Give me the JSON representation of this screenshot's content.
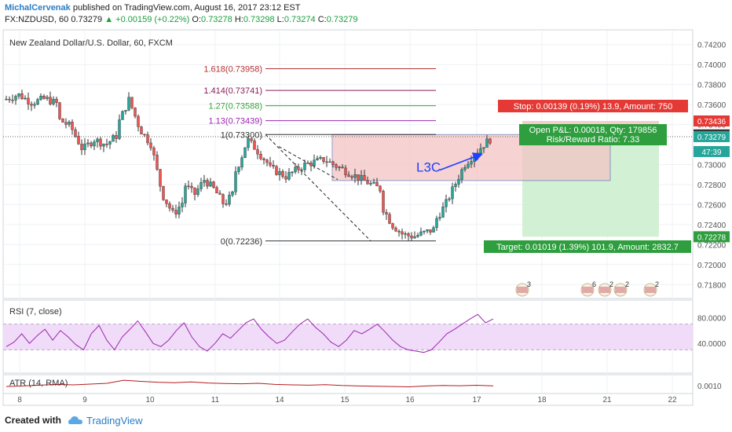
{
  "header": {
    "author": "MichalCervenak",
    "published_text": "published on TradingView.com, August 16, 2017 23:12 EST",
    "symbol_line": {
      "symbol": "FX:NZDUSD, 60",
      "price": "0.73279",
      "change": "+0.00159 (+0.22%)",
      "O_label": "O:",
      "O": "0.73278",
      "H_label": "H:",
      "H": "0.73298",
      "L_label": "L:",
      "L": "0.73274",
      "C_label": "C:",
      "C": "0.73279"
    }
  },
  "footer": {
    "created_with": "Created with",
    "brand": "TradingView"
  },
  "colors": {
    "up": "#26a69a",
    "down": "#ef5350",
    "candle_outline": "#333333",
    "stop_zone": "#f4c7c7",
    "target_zone": "#cdeecf",
    "fib": "#b33333",
    "rsi_line": "#9c27b0",
    "rsi_band": "#f0dcf8",
    "atr_line": "#b71c1c",
    "arrow": "#1e40ff"
  },
  "chart_data": [
    {
      "type": "candlestick",
      "title": "New Zealand Dollar/U.S. Dollar, 60, FXCM",
      "ylim": [
        0.717,
        0.743
      ],
      "y_ticks": [
        0.718,
        0.72,
        0.722,
        0.724,
        0.726,
        0.728,
        0.73,
        0.734,
        0.736,
        0.738,
        0.74,
        0.742
      ],
      "y_tick_labels": [
        "0.71800",
        "0.72000",
        "0.72200",
        "0.72400",
        "0.72600",
        "0.72800",
        "0.73000",
        "0.73400",
        "0.73600",
        "0.73800",
        "0.74000",
        "0.74200"
      ],
      "x_ticks": [
        "8",
        "9",
        "10",
        "11",
        "14",
        "15",
        "16",
        "17",
        "18",
        "21",
        "22"
      ],
      "grid": true,
      "series_close_path": [
        [
          0.7365,
          0.737,
          0.7362,
          0.7366,
          0.736
        ],
        [
          0.7345,
          0.7338,
          0.7315,
          0.7325,
          0.732,
          0.733
        ],
        [
          0.734,
          0.7365,
          0.7335,
          0.732,
          0.727,
          0.725,
          0.7265
        ],
        [
          0.728,
          0.727,
          0.7285,
          0.7275,
          0.726,
          0.7272
        ],
        [
          0.729,
          0.7305,
          0.7325,
          0.7318,
          0.731,
          0.7302
        ],
        [
          0.7298,
          0.7288,
          0.73,
          0.7305,
          0.7295,
          0.7285,
          0.7275
        ],
        [
          0.726,
          0.724,
          0.723,
          0.7228,
          0.7232,
          0.7236
        ],
        [
          0.7245,
          0.726,
          0.728,
          0.73,
          0.731,
          0.732,
          0.73279
        ]
      ],
      "fib_levels": [
        {
          "label": "1.618(0.73958)",
          "value": 0.73958,
          "color": "#b33333"
        },
        {
          "label": "1.414(0.73741)",
          "value": 0.73741,
          "color": "#8e1a5a"
        },
        {
          "label": "1.27(0.73588)",
          "value": 0.73588,
          "color": "#3aa63a"
        },
        {
          "label": "1.13(0.73439)",
          "value": 0.73439,
          "color": "#9c27b0"
        },
        {
          "label": "1(0.73300)",
          "value": 0.733,
          "color": "#333333"
        },
        {
          "label": "0(0.72236)",
          "value": 0.72236,
          "color": "#333333"
        }
      ],
      "annotations": {
        "stop": "Stop: 0.00139 (0.19%) 13.9, Amount: 750",
        "open_pl": "Open P&L: 0.00018, Qty: 179856",
        "risk_reward": "Risk/Reward Ratio: 7.33",
        "target": "Target: 0.01019 (1.39%) 101.9, Amount: 2832.7",
        "pattern_label": "L3C"
      },
      "price_tags": [
        {
          "label": "0.73436",
          "value": 0.73436,
          "color": "#e53935"
        },
        {
          "label": "0.73297",
          "value": 0.73297,
          "color": "#333333"
        },
        {
          "label": "0.73279",
          "value": 0.73279,
          "color": "#26a69a"
        },
        {
          "label": "47:39",
          "value": 0.7313,
          "color": "#26a69a"
        },
        {
          "label": "0.72278",
          "value": 0.72278,
          "color": "#2e9e3e"
        }
      ],
      "event_badges": [
        {
          "label": "3",
          "x_day": 15.5
        },
        {
          "label": "6",
          "x_day": 17.6
        },
        {
          "label": "2",
          "x_day": 17.9
        },
        {
          "label": "2",
          "x_day": 18.1
        },
        {
          "label": "2",
          "x_day": 18.6
        }
      ]
    },
    {
      "type": "line",
      "title": "RSI (7, close)",
      "ylim": [
        0,
        100
      ],
      "y_ticks": [
        40,
        80
      ],
      "y_tick_labels": [
        "40.0000",
        "80.0000"
      ],
      "band": [
        30,
        70
      ],
      "values": [
        35,
        42,
        55,
        40,
        52,
        62,
        45,
        60,
        50,
        38,
        30,
        55,
        68,
        45,
        30,
        50,
        62,
        75,
        58,
        40,
        35,
        45,
        60,
        72,
        50,
        35,
        28,
        40,
        55,
        48,
        60,
        72,
        78,
        62,
        50,
        40,
        45,
        58,
        70,
        78,
        65,
        55,
        42,
        35,
        45,
        60,
        55,
        62,
        70,
        58,
        45,
        35,
        30,
        28,
        26,
        30,
        42,
        55,
        62,
        70,
        78,
        85,
        72,
        78
      ]
    },
    {
      "type": "line",
      "title": "ATR (14, RMA)",
      "y_ticks": [
        0.001
      ],
      "y_tick_labels": [
        "0.0010"
      ],
      "ylim": [
        0.0005,
        0.0018
      ],
      "values": [
        0.00092,
        0.00098,
        0.00105,
        0.00112,
        0.00108,
        0.00115,
        0.00122,
        0.0015,
        0.0014,
        0.00132,
        0.00128,
        0.00135,
        0.00125,
        0.0012,
        0.00118,
        0.00122,
        0.00112,
        0.00108,
        0.00105,
        0.0011,
        0.00102,
        0.00098,
        0.00095,
        0.00092,
        0.0009,
        0.00098,
        0.00102,
        0.001,
        0.00104,
        0.00099
      ]
    }
  ]
}
